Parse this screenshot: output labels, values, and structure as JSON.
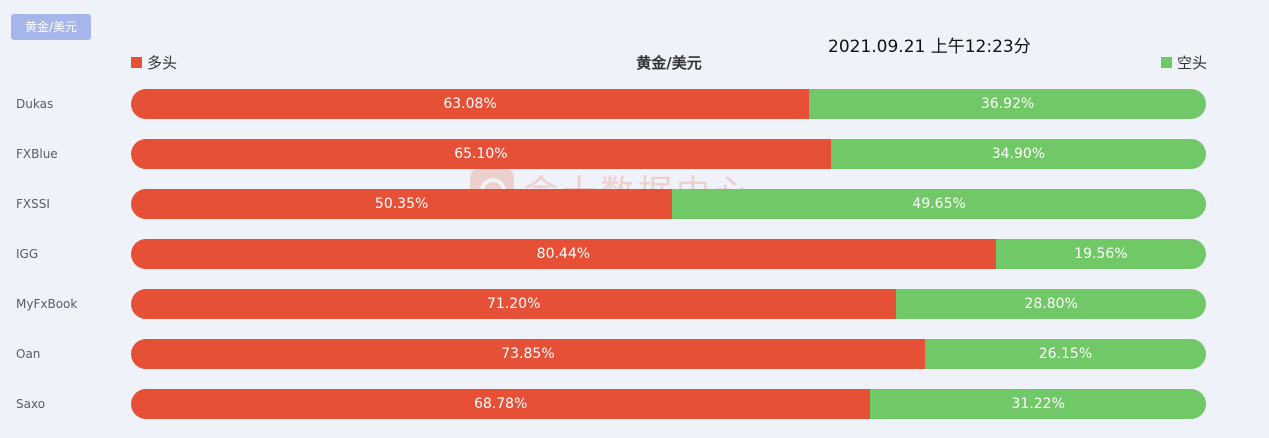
{
  "tag_label": "黄金/美元",
  "timestamp": "2021.09.21 上午12:23分",
  "watermark": "金十数据中心",
  "colors": {
    "long": "#e65037",
    "short": "#71c866"
  },
  "chart_data": {
    "type": "bar",
    "title": "黄金/美元",
    "legend": [
      {
        "name": "多头",
        "color": "#e65037",
        "position": "top-left"
      },
      {
        "name": "空头",
        "color": "#71c866",
        "position": "top-right"
      }
    ],
    "categories": [
      "Dukas",
      "FXBlue",
      "FXSSI",
      "IGG",
      "MyFxBook",
      "Oan",
      "Saxo"
    ],
    "series": [
      {
        "name": "多头",
        "values": [
          63.08,
          65.1,
          50.35,
          80.44,
          71.2,
          73.85,
          68.78
        ],
        "labels": [
          "63.08%",
          "65.10%",
          "50.35%",
          "80.44%",
          "71.20%",
          "73.85%",
          "68.78%"
        ]
      },
      {
        "name": "空头",
        "values": [
          36.92,
          34.9,
          49.65,
          19.56,
          28.8,
          26.15,
          31.22
        ],
        "labels": [
          "36.92%",
          "34.90%",
          "49.65%",
          "19.56%",
          "28.80%",
          "26.15%",
          "31.22%"
        ]
      }
    ],
    "stacked": true,
    "orientation": "horizontal",
    "xlim": [
      0,
      100
    ],
    "grid": false
  }
}
